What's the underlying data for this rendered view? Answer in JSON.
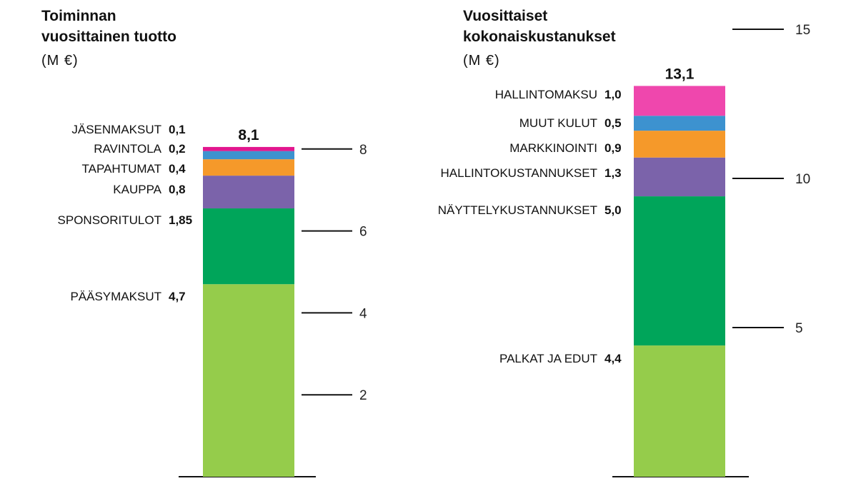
{
  "chart_data": [
    {
      "type": "bar",
      "stacked": true,
      "title": "Toiminnan\nvuosittainen tuotto",
      "unit": "(M €)",
      "total_label": "8,1",
      "ylim": [
        0,
        8.1
      ],
      "yticks": [
        2,
        4,
        6,
        8
      ],
      "series": [
        {
          "name": "PÄÄSYMAKSUT",
          "value": 4.7,
          "label": "4,7",
          "color": "#95cc4b"
        },
        {
          "name": "SPONSORITULOT",
          "value": 1.85,
          "label": "1,85",
          "color": "#00a55a"
        },
        {
          "name": "KAUPPA",
          "value": 0.8,
          "label": "0,8",
          "color": "#7b63aa"
        },
        {
          "name": "TAPAHTUMAT",
          "value": 0.4,
          "label": "0,4",
          "color": "#f5992a"
        },
        {
          "name": "RAVINTOLA",
          "value": 0.2,
          "label": "0,2",
          "color": "#3d92cf"
        },
        {
          "name": "JÄSENMAKSUT",
          "value": 0.1,
          "label": "0,1",
          "color": "#e2178e"
        }
      ]
    },
    {
      "type": "bar",
      "stacked": true,
      "title": "Vuosittaiset\nkokonaiskustanukset",
      "unit": "(M €)",
      "total_label": "13,1",
      "ylim": [
        0,
        13.1
      ],
      "yticks": [
        5,
        10,
        15
      ],
      "series": [
        {
          "name": "PALKAT JA EDUT",
          "value": 4.4,
          "label": "4,4",
          "color": "#95cc4b"
        },
        {
          "name": "NÄYTTELYKUSTANNUKSET",
          "value": 5.0,
          "label": "5,0",
          "color": "#00a55a"
        },
        {
          "name": "HALLINTOKUSTANNUKSET",
          "value": 1.3,
          "label": "1,3",
          "color": "#7b63aa"
        },
        {
          "name": "MARKKINOINTI",
          "value": 0.9,
          "label": "0,9",
          "color": "#f5992a"
        },
        {
          "name": "MUUT KULUT",
          "value": 0.5,
          "label": "0,5",
          "color": "#3d92cf"
        },
        {
          "name": "HALLINTOMAKSU",
          "value": 1.0,
          "label": "1,0",
          "color": "#ef47ad"
        }
      ]
    }
  ]
}
